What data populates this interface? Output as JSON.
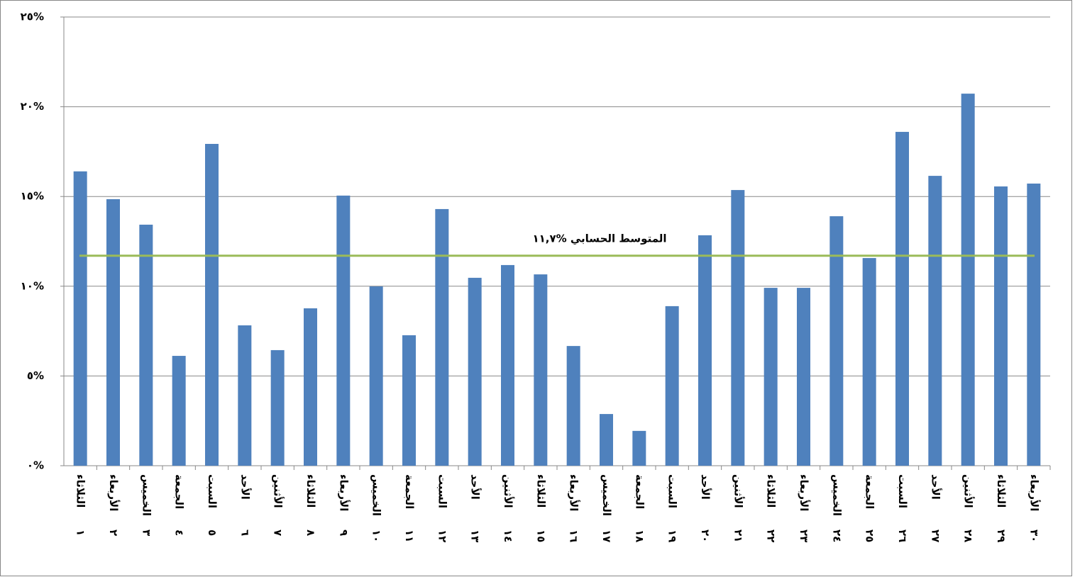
{
  "chart_data": {
    "type": "bar",
    "categories": [
      "الثلاثاء",
      "الأربعاء",
      "الخميس",
      "الجمعة",
      "السبت",
      "الأحد",
      "الأثنين",
      "الثلاثاء",
      "الأربعاء",
      "الخميس",
      "الجمعة",
      "السبت",
      "الأحد",
      "الأثنين",
      "الثلاثاء",
      "الأربعاء",
      "الخميس",
      "الجمعة",
      "السبت",
      "الأحد",
      "الأثنين",
      "الثلاثاء",
      "الأربعاء",
      "الخميس",
      "الجمعة",
      "السبت",
      "الأحد",
      "الأثنين",
      "الثلاثاء",
      "الأربعاء"
    ],
    "day_labels": [
      "١",
      "٢",
      "٣",
      "٤",
      "٥",
      "٦",
      "٧",
      "٨",
      "٩",
      "١٠",
      "١١",
      "١٢",
      "١٣",
      "١٤",
      "١٥",
      "١٦",
      "١٧",
      "١٨",
      "١٩",
      "٢٠",
      "٢١",
      "٢٢",
      "٢٣",
      "٢٤",
      "٢٥",
      "٢٦",
      "٢٧",
      "٢٨",
      "٢٩",
      "٣٠"
    ],
    "values": [
      16.4,
      14.85,
      13.43,
      6.12,
      17.93,
      7.82,
      6.44,
      8.77,
      15.05,
      9.99,
      7.27,
      14.3,
      10.47,
      11.18,
      10.66,
      6.67,
      2.88,
      1.94,
      8.89,
      12.84,
      15.36,
      9.91,
      9.91,
      13.9,
      11.57,
      18.6,
      16.15,
      20.73,
      15.56,
      15.72
    ],
    "color": "#4f81bd",
    "ylim": [
      0,
      25
    ],
    "yticks": [
      {
        "value": 0,
        "label": "٠%"
      },
      {
        "value": 5,
        "label": "٥%"
      },
      {
        "value": 10,
        "label": "١٠%"
      },
      {
        "value": 15,
        "label": "١٥%"
      },
      {
        "value": 20,
        "label": "٢٠%"
      },
      {
        "value": 25,
        "label": "٢٥%"
      }
    ],
    "grid": true,
    "mean_line": {
      "value": 11.7,
      "label": "المتوسط الحسابي %١١,٧",
      "color": "#9bbb59"
    }
  }
}
